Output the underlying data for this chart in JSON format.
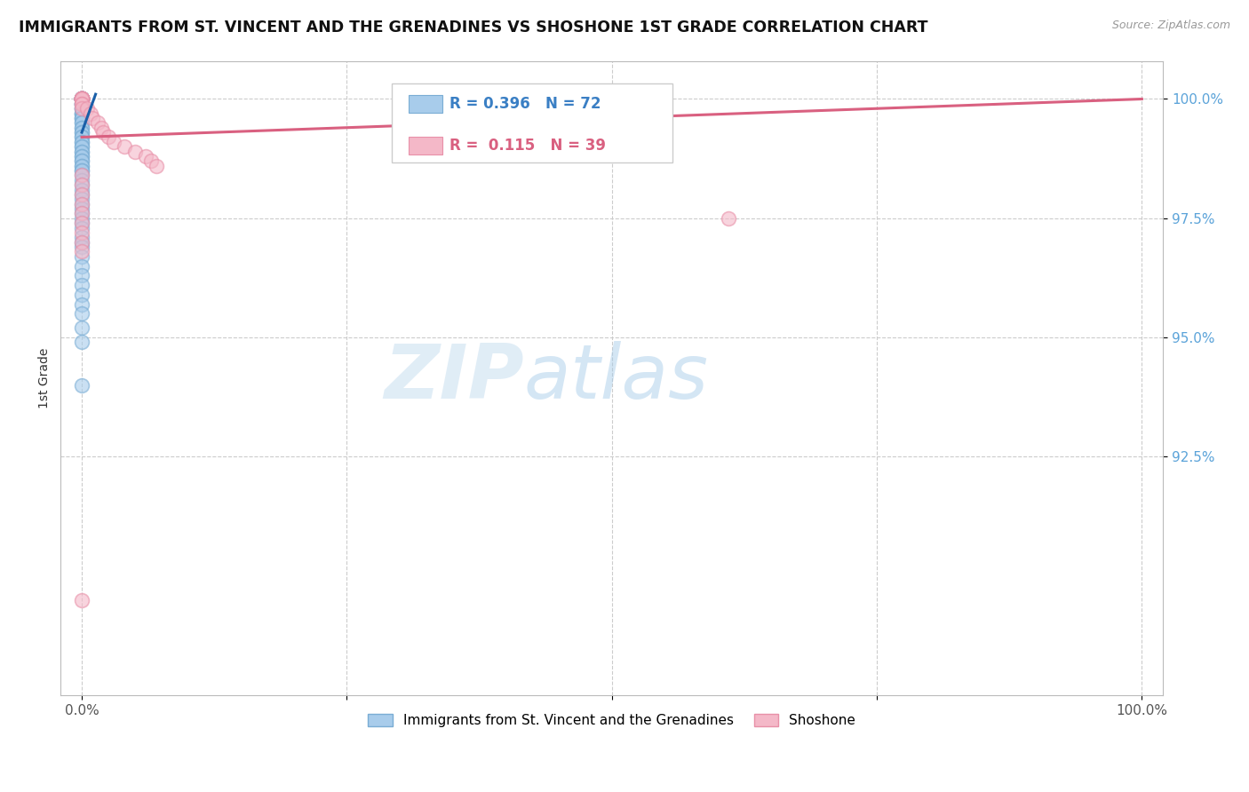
{
  "title": "IMMIGRANTS FROM ST. VINCENT AND THE GRENADINES VS SHOSHONE 1ST GRADE CORRELATION CHART",
  "source": "Source: ZipAtlas.com",
  "ylabel": "1st Grade",
  "xlim": [
    -0.02,
    1.02
  ],
  "ylim": [
    0.875,
    1.008
  ],
  "xtick_positions": [
    0.0,
    0.25,
    0.5,
    0.75,
    1.0
  ],
  "xticklabels": [
    "0.0%",
    "",
    "",
    "",
    "100.0%"
  ],
  "ytick_positions": [
    0.925,
    0.95,
    0.975,
    1.0
  ],
  "ytick_labels": [
    "92.5%",
    "95.0%",
    "97.5%",
    "100.0%"
  ],
  "blue_label": "Immigrants from St. Vincent and the Grenadines",
  "pink_label": "Shoshone",
  "R_blue": 0.396,
  "N_blue": 72,
  "R_pink": 0.115,
  "N_pink": 39,
  "blue_color": "#a8cceb",
  "pink_color": "#f4b8c8",
  "blue_edge_color": "#7aadd4",
  "pink_edge_color": "#e890a8",
  "blue_line_color": "#1a5fa8",
  "pink_line_color": "#d96080",
  "watermark_zip": "ZIP",
  "watermark_atlas": "atlas",
  "blue_scatter_x": [
    0.0,
    0.0,
    0.0,
    0.0,
    0.0,
    0.0,
    0.0,
    0.0,
    0.0,
    0.0,
    0.0,
    0.0,
    0.0,
    0.0,
    0.0,
    0.0,
    0.0,
    0.0,
    0.0,
    0.0,
    0.0,
    0.0,
    0.0,
    0.0,
    0.0,
    0.0,
    0.0,
    0.0,
    0.0,
    0.0,
    0.0,
    0.0,
    0.0,
    0.0,
    0.0,
    0.0,
    0.0,
    0.0,
    0.0,
    0.0,
    0.0,
    0.0,
    0.0,
    0.0,
    0.0,
    0.0,
    0.0,
    0.0,
    0.0,
    0.0,
    0.0,
    0.0,
    0.0,
    0.0,
    0.0,
    0.0,
    0.0,
    0.0,
    0.0,
    0.0,
    0.0,
    0.0,
    0.0,
    0.0,
    0.0,
    0.0,
    0.0,
    0.0,
    0.0,
    0.0,
    0.0,
    0.0
  ],
  "blue_scatter_y": [
    1.0,
    1.0,
    1.0,
    1.0,
    1.0,
    1.0,
    1.0,
    1.0,
    1.0,
    1.0,
    1.0,
    1.0,
    0.999,
    0.999,
    0.999,
    0.999,
    0.998,
    0.998,
    0.998,
    0.997,
    0.997,
    0.997,
    0.996,
    0.996,
    0.996,
    0.995,
    0.995,
    0.994,
    0.994,
    0.993,
    0.993,
    0.992,
    0.992,
    0.991,
    0.991,
    0.99,
    0.99,
    0.989,
    0.989,
    0.988,
    0.988,
    0.987,
    0.987,
    0.986,
    0.986,
    0.985,
    0.985,
    0.984,
    0.983,
    0.982,
    0.981,
    0.98,
    0.979,
    0.978,
    0.977,
    0.976,
    0.975,
    0.974,
    0.973,
    0.971,
    0.97,
    0.969,
    0.967,
    0.965,
    0.963,
    0.961,
    0.959,
    0.957,
    0.955,
    0.952,
    0.949,
    0.94
  ],
  "pink_scatter_x": [
    0.0,
    0.0,
    0.0,
    0.0,
    0.0,
    0.0,
    0.0,
    0.0,
    0.0,
    0.0,
    0.0,
    0.0,
    0.0,
    0.0,
    0.0,
    0.005,
    0.008,
    0.01,
    0.015,
    0.018,
    0.02,
    0.025,
    0.03,
    0.04,
    0.05,
    0.06,
    0.065,
    0.07,
    0.0,
    0.0,
    0.0,
    0.0,
    0.0,
    0.0,
    0.0,
    0.0,
    0.0,
    0.61,
    0.0
  ],
  "pink_scatter_y": [
    1.0,
    1.0,
    1.0,
    1.0,
    1.0,
    1.0,
    1.0,
    1.0,
    1.0,
    1.0,
    1.0,
    1.0,
    0.999,
    0.999,
    0.998,
    0.998,
    0.997,
    0.996,
    0.995,
    0.994,
    0.993,
    0.992,
    0.991,
    0.99,
    0.989,
    0.988,
    0.987,
    0.986,
    0.984,
    0.982,
    0.98,
    0.978,
    0.976,
    0.974,
    0.972,
    0.97,
    0.968,
    0.975,
    0.895
  ],
  "blue_line_x": [
    0.0,
    0.013
  ],
  "blue_line_y": [
    0.993,
    1.001
  ],
  "pink_line_x": [
    0.0,
    1.0
  ],
  "pink_line_y": [
    0.992,
    1.0
  ]
}
